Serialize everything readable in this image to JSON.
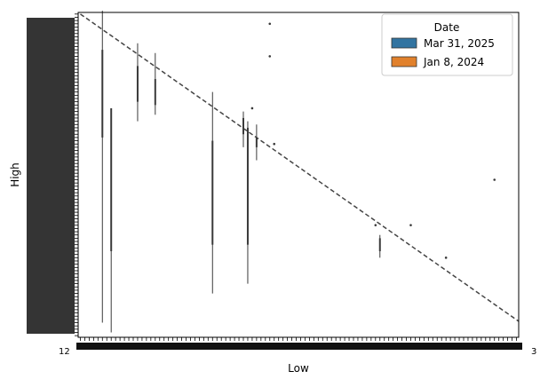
{
  "chart_data": {
    "type": "box",
    "xlabel": "Low",
    "ylabel": "High",
    "x_tick_first": "12",
    "x_tick_last": "3",
    "legend": {
      "title": "Date",
      "placement": "top-right",
      "entries": [
        {
          "label": "Mar 31, 2025",
          "color": "#3274a1"
        },
        {
          "label": "Jan 8, 2024",
          "color": "#e1812c"
        }
      ]
    },
    "reference_line": {
      "style": "dashed",
      "color": "#444444"
    },
    "x_categories_count": 100,
    "y_categories_count": 100,
    "boxes": [
      {
        "x": 5,
        "whisker": [
          4,
          100
        ],
        "box": [
          61,
          88
        ]
      },
      {
        "x": 7,
        "whisker": [
          1,
          68
        ],
        "box": [
          26,
          70
        ]
      },
      {
        "x": 13,
        "whisker": [
          66,
          90
        ],
        "box": [
          72,
          83
        ]
      },
      {
        "x": 17,
        "whisker": [
          68,
          87
        ],
        "box": [
          71,
          79
        ]
      },
      {
        "x": 30,
        "whisker": [
          13,
          75
        ],
        "box": [
          28,
          60
        ]
      },
      {
        "x": 37,
        "whisker": [
          58,
          69
        ],
        "box": [
          62,
          67
        ]
      },
      {
        "x": 38,
        "whisker": [
          16,
          66
        ],
        "box": [
          28,
          64
        ]
      },
      {
        "x": 40,
        "whisker": [
          54,
          65
        ],
        "box": [
          58,
          61
        ]
      }
    ],
    "outliers": [
      {
        "x": 43,
        "y": 96
      },
      {
        "x": 43,
        "y": 86
      },
      {
        "x": 39,
        "y": 70
      },
      {
        "x": 44,
        "y": 59
      },
      {
        "x": 67,
        "y": 34
      },
      {
        "x": 75,
        "y": 34
      },
      {
        "x": 83,
        "y": 24
      },
      {
        "x": 94,
        "y": 48
      }
    ],
    "small_boxes": [
      {
        "x": 68,
        "whisker": [
          24,
          31
        ],
        "box": [
          26,
          30
        ]
      }
    ]
  }
}
